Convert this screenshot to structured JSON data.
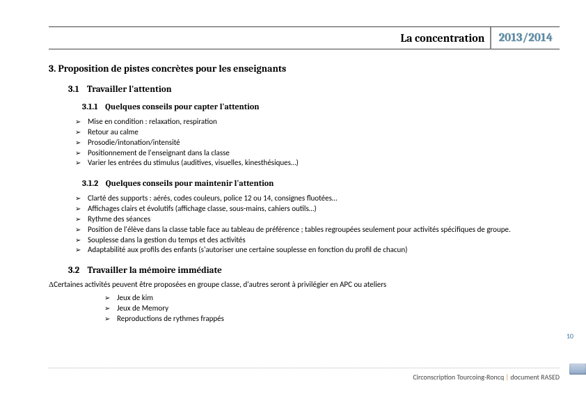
{
  "header": {
    "title": "La concentration",
    "year": "2013/2014"
  },
  "section": {
    "num": "3.",
    "title": "Proposition de pistes concrètes pour les enseignants",
    "s31_num": "3.1",
    "s31_title": "Travailler l'attention",
    "s311_num": "3.1.1",
    "s311_title": "Quelques conseils pour capter l'attention",
    "s311_items": [
      "Mise en condition : relaxation, respiration",
      "Retour au calme",
      "Prosodie/intonation/intensité",
      "Positionnement de l'enseignant dans la classe",
      "Varier les entrées du stimulus (auditives, visuelles, kinesthésiques…)"
    ],
    "s312_num": "3.1.2",
    "s312_title": "Quelques conseils pour maintenir l'attention",
    "s312_items": [
      "Clarté des supports : aérés, codes couleurs, police 12 ou 14, consignes fluotées…",
      "Affichages clairs et évolutifs (affichage classe, sous-mains, cahiers outils…)",
      "Rythme des séances",
      "Position de l'élève dans la classe table face au tableau de préférence ; tables regroupées seulement pour activités spécifiques de groupe.",
      "Souplesse dans la gestion du temps et des activités",
      "Adaptabilité aux profils des enfants (s'autoriser une certaine souplesse en fonction du profil de chacun)"
    ],
    "s32_num": "3.2",
    "s32_title": "Travailler la mémoire immédiate",
    "s32_intro": "Certaines activités peuvent être proposées en groupe classe, d'autres seront à privilégier en APC ou ateliers",
    "s32_items": [
      "Jeux de kim",
      "Jeux de Memory",
      "Reproductions de rythmes frappés"
    ]
  },
  "footer": {
    "left": "Circonscription Tourcoing-Roncq",
    "right": "document RASED"
  },
  "page_number": "10"
}
